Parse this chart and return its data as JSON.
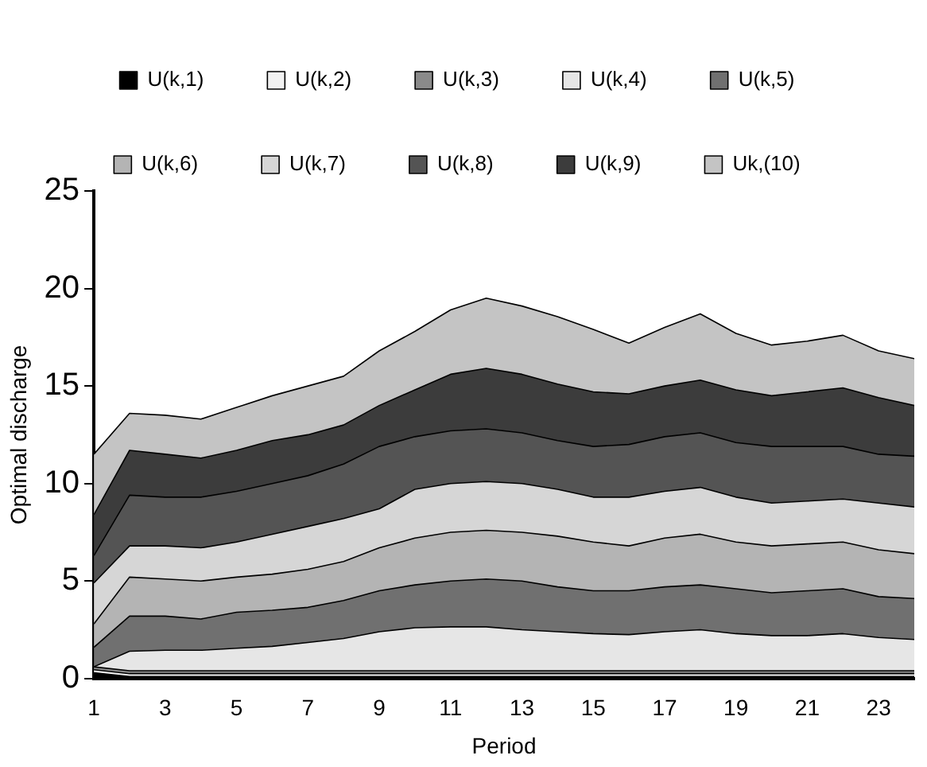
{
  "chart_data": {
    "type": "area",
    "stacked": true,
    "xlabel": "Period",
    "ylabel": "Optimal discharge",
    "x": [
      1,
      2,
      3,
      4,
      5,
      6,
      7,
      8,
      9,
      10,
      11,
      12,
      13,
      14,
      15,
      16,
      17,
      18,
      19,
      20,
      21,
      22,
      23,
      24
    ],
    "xlim": [
      1,
      24
    ],
    "xticks": [
      1,
      3,
      5,
      7,
      9,
      11,
      13,
      15,
      17,
      19,
      21,
      23
    ],
    "ylim": [
      0,
      25
    ],
    "yticks": [
      0,
      5,
      10,
      15,
      20,
      25
    ],
    "grid": false,
    "legend": "top",
    "marker": "none",
    "series": [
      {
        "name": "U(k,1)",
        "color": "#000000",
        "values": [
          0.3,
          0.1,
          0.1,
          0.1,
          0.1,
          0.1,
          0.1,
          0.1,
          0.1,
          0.1,
          0.1,
          0.1,
          0.1,
          0.1,
          0.1,
          0.1,
          0.1,
          0.1,
          0.1,
          0.1,
          0.1,
          0.1,
          0.1,
          0.1
        ]
      },
      {
        "name": "U(k,2)",
        "color": "#f2f2f2",
        "values": [
          0.15,
          0.15,
          0.15,
          0.15,
          0.15,
          0.15,
          0.15,
          0.15,
          0.15,
          0.15,
          0.15,
          0.15,
          0.15,
          0.15,
          0.15,
          0.15,
          0.15,
          0.15,
          0.15,
          0.15,
          0.15,
          0.15,
          0.15,
          0.15
        ]
      },
      {
        "name": "U(k,3)",
        "color": "#8a8a8a",
        "values": [
          0.15,
          0.15,
          0.15,
          0.15,
          0.15,
          0.15,
          0.15,
          0.15,
          0.15,
          0.15,
          0.15,
          0.15,
          0.15,
          0.15,
          0.15,
          0.15,
          0.15,
          0.15,
          0.15,
          0.15,
          0.15,
          0.15,
          0.15,
          0.15
        ]
      },
      {
        "name": "U(k,4)",
        "color": "#e6e6e6",
        "values": [
          0.0,
          1.0,
          1.05,
          1.05,
          1.15,
          1.25,
          1.45,
          1.65,
          2.0,
          2.2,
          2.25,
          2.25,
          2.1,
          2.0,
          1.9,
          1.85,
          2.0,
          2.1,
          1.9,
          1.8,
          1.8,
          1.9,
          1.7,
          1.6
        ]
      },
      {
        "name": "U(k,5)",
        "color": "#707070",
        "values": [
          1.0,
          1.8,
          1.75,
          1.6,
          1.85,
          1.85,
          1.8,
          1.95,
          2.1,
          2.2,
          2.35,
          2.45,
          2.5,
          2.3,
          2.2,
          2.25,
          2.3,
          2.3,
          2.3,
          2.2,
          2.3,
          2.3,
          2.1,
          2.1
        ]
      },
      {
        "name": "U(k,6)",
        "color": "#b4b4b4",
        "values": [
          1.2,
          2.0,
          1.9,
          1.95,
          1.8,
          1.85,
          1.95,
          2.0,
          2.2,
          2.4,
          2.5,
          2.5,
          2.5,
          2.6,
          2.5,
          2.3,
          2.5,
          2.6,
          2.4,
          2.4,
          2.4,
          2.4,
          2.4,
          2.3
        ]
      },
      {
        "name": "U(k,7)",
        "color": "#d6d6d6",
        "values": [
          2.1,
          1.6,
          1.7,
          1.7,
          1.8,
          2.05,
          2.2,
          2.2,
          2.0,
          2.5,
          2.5,
          2.5,
          2.5,
          2.4,
          2.3,
          2.5,
          2.4,
          2.4,
          2.3,
          2.2,
          2.2,
          2.2,
          2.4,
          2.4
        ]
      },
      {
        "name": "U(k,8)",
        "color": "#545454",
        "values": [
          1.4,
          2.6,
          2.5,
          2.6,
          2.6,
          2.6,
          2.6,
          2.8,
          3.2,
          2.7,
          2.7,
          2.7,
          2.6,
          2.5,
          2.6,
          2.7,
          2.8,
          2.8,
          2.8,
          2.9,
          2.8,
          2.7,
          2.5,
          2.6
        ]
      },
      {
        "name": "U(k,9)",
        "color": "#3c3c3c",
        "values": [
          2.1,
          2.3,
          2.2,
          2.0,
          2.1,
          2.2,
          2.1,
          2.0,
          2.1,
          2.4,
          2.9,
          3.1,
          3.0,
          2.9,
          2.8,
          2.6,
          2.6,
          2.7,
          2.7,
          2.6,
          2.8,
          3.0,
          2.9,
          2.6
        ]
      },
      {
        "name": "Uk,(10)",
        "color": "#c4c4c4",
        "values": [
          3.1,
          1.9,
          2.0,
          2.0,
          2.2,
          2.3,
          2.5,
          2.5,
          2.8,
          3.0,
          3.3,
          3.6,
          3.5,
          3.45,
          3.2,
          2.6,
          3.0,
          3.4,
          2.9,
          2.6,
          2.6,
          2.7,
          2.4,
          2.4
        ]
      }
    ]
  }
}
